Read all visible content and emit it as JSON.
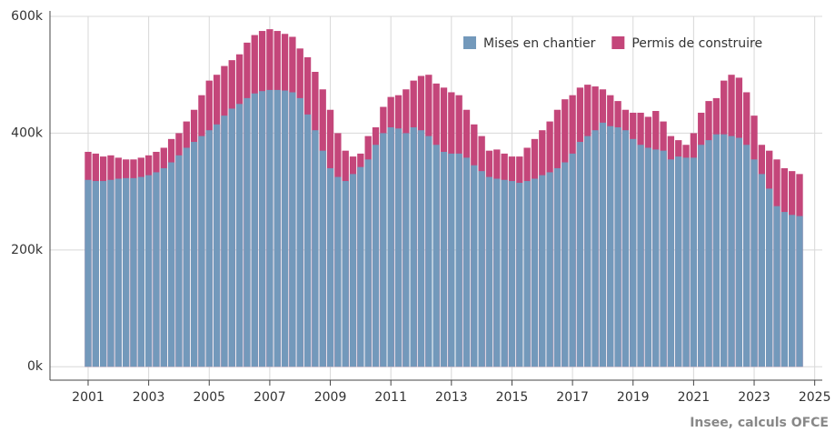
{
  "chart_data": {
    "type": "bar",
    "barmode": "overlay",
    "x": [
      2001,
      2001.25,
      2001.5,
      2001.75,
      2002,
      2002.25,
      2002.5,
      2002.75,
      2003,
      2003.25,
      2003.5,
      2003.75,
      2004,
      2004.25,
      2004.5,
      2004.75,
      2005,
      2005.25,
      2005.5,
      2005.75,
      2006,
      2006.25,
      2006.5,
      2006.75,
      2007,
      2007.25,
      2007.5,
      2007.75,
      2008,
      2008.25,
      2008.5,
      2008.75,
      2009,
      2009.25,
      2009.5,
      2009.75,
      2010,
      2010.25,
      2010.5,
      2010.75,
      2011,
      2011.25,
      2011.5,
      2011.75,
      2012,
      2012.25,
      2012.5,
      2012.75,
      2013,
      2013.25,
      2013.5,
      2013.75,
      2014,
      2014.25,
      2014.5,
      2014.75,
      2015,
      2015.25,
      2015.5,
      2015.75,
      2016,
      2016.25,
      2016.5,
      2016.75,
      2017,
      2017.25,
      2017.5,
      2017.75,
      2018,
      2018.25,
      2018.5,
      2018.75,
      2019,
      2019.25,
      2019.5,
      2019.75,
      2020,
      2020.25,
      2020.5,
      2020.75,
      2021,
      2021.25,
      2021.5,
      2021.75,
      2022,
      2022.25,
      2022.5,
      2022.75,
      2023,
      2023.25,
      2023.5,
      2023.75,
      2024,
      2024.25,
      2024.5
    ],
    "series": [
      {
        "name": "Permis de construire",
        "color": "#c4467a",
        "values": [
          368000,
          365000,
          360000,
          362000,
          358000,
          355000,
          355000,
          358000,
          362000,
          368000,
          375000,
          390000,
          400000,
          420000,
          440000,
          465000,
          490000,
          500000,
          515000,
          525000,
          535000,
          555000,
          568000,
          575000,
          578000,
          575000,
          570000,
          565000,
          545000,
          530000,
          505000,
          475000,
          440000,
          400000,
          370000,
          360000,
          365000,
          395000,
          410000,
          445000,
          462000,
          465000,
          475000,
          490000,
          498000,
          500000,
          485000,
          478000,
          470000,
          465000,
          440000,
          415000,
          395000,
          370000,
          372000,
          365000,
          360000,
          360000,
          375000,
          390000,
          405000,
          420000,
          440000,
          458000,
          465000,
          478000,
          483000,
          480000,
          475000,
          465000,
          455000,
          440000,
          435000,
          435000,
          428000,
          438000,
          420000,
          395000,
          388000,
          380000,
          400000,
          435000,
          455000,
          460000,
          490000,
          500000,
          495000,
          470000,
          430000,
          380000,
          370000,
          355000,
          340000,
          335000,
          330000
        ]
      },
      {
        "name": "Mises en chantier",
        "color": "#7399bb",
        "values": [
          320000,
          318000,
          318000,
          320000,
          322000,
          323000,
          323000,
          325000,
          328000,
          333000,
          340000,
          350000,
          362000,
          375000,
          385000,
          395000,
          405000,
          415000,
          430000,
          442000,
          450000,
          460000,
          468000,
          472000,
          474000,
          474000,
          473000,
          470000,
          460000,
          432000,
          405000,
          370000,
          340000,
          325000,
          318000,
          330000,
          342000,
          355000,
          380000,
          400000,
          410000,
          408000,
          400000,
          410000,
          405000,
          395000,
          380000,
          368000,
          365000,
          365000,
          358000,
          345000,
          335000,
          325000,
          322000,
          320000,
          318000,
          315000,
          318000,
          322000,
          328000,
          333000,
          340000,
          350000,
          365000,
          385000,
          395000,
          405000,
          418000,
          412000,
          410000,
          405000,
          390000,
          380000,
          375000,
          372000,
          370000,
          355000,
          360000,
          358000,
          358000,
          380000,
          388000,
          398000,
          398000,
          395000,
          392000,
          380000,
          355000,
          330000,
          305000,
          275000,
          265000,
          260000,
          258000
        ]
      }
    ],
    "legend_order": [
      1,
      0
    ],
    "xlim": [
      1999.74,
      2025.25
    ],
    "xticks": [
      2001,
      2003,
      2005,
      2007,
      2009,
      2011,
      2013,
      2015,
      2017,
      2019,
      2021,
      2023,
      2025
    ],
    "ylim": [
      -23000,
      600000
    ],
    "yticks": [
      {
        "value": 0,
        "label": "0k"
      },
      {
        "value": 200000,
        "label": "200k"
      },
      {
        "value": 400000,
        "label": "400k"
      },
      {
        "value": 600000,
        "label": "600k"
      }
    ],
    "grid": true,
    "legend": "top-right",
    "source": "Insee, calculs OFCE"
  }
}
